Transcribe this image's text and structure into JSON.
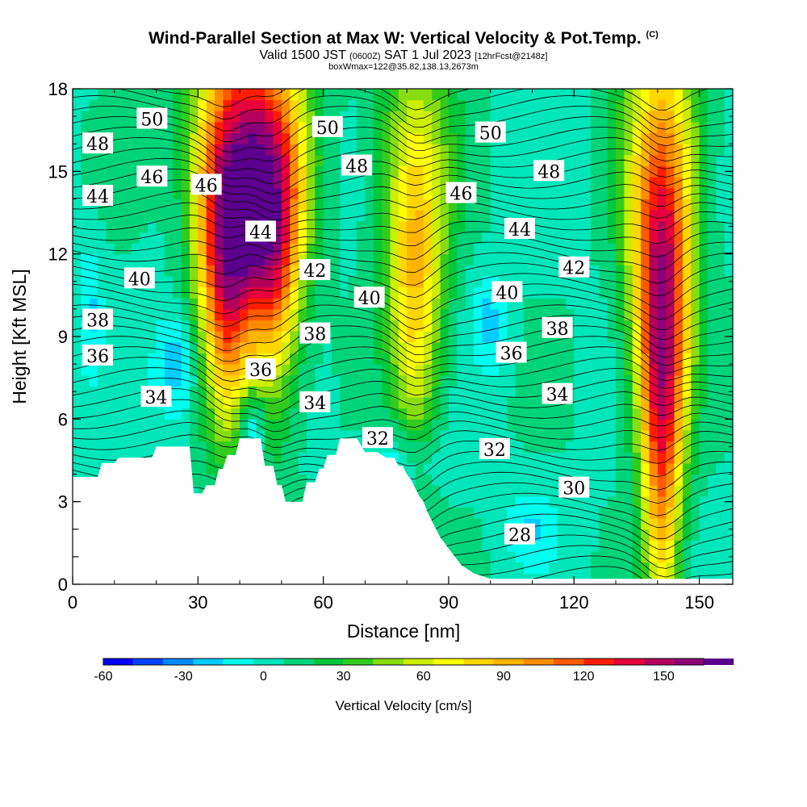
{
  "title": {
    "main": "Wind-Parallel Section at Max W: Vertical Velocity & Pot.Temp.",
    "copyright": "(C)",
    "valid_prefix": "Valid 1500 JST",
    "valid_utc": "(0600Z)",
    "valid_date": "SAT 1 Jul 2023",
    "forecast_info": "[12hrFcst@2148z]",
    "box_info": "boxWmax=122@35.82,138.13,2673m"
  },
  "colors": {
    "palette": [
      "#0000ff",
      "#0044ff",
      "#0088ff",
      "#00ccff",
      "#00ffee",
      "#00e6bb",
      "#00d47a",
      "#00c83c",
      "#33cc1e",
      "#88dd11",
      "#ccee00",
      "#ffff00",
      "#ffd700",
      "#ffb400",
      "#ff8c00",
      "#ff5a00",
      "#ff1e00",
      "#e6003c",
      "#b4005a",
      "#8c0078",
      "#5a008c"
    ],
    "contour_line": "#000000",
    "terrain": "#ffffff"
  },
  "chart_data": {
    "type": "heatmap",
    "xlabel": "Distance [nm]",
    "ylabel": "Height [Kft MSL]",
    "x_ticks": [
      0,
      30,
      60,
      90,
      120,
      150
    ],
    "y_ticks": [
      0,
      3,
      6,
      9,
      12,
      15,
      18
    ],
    "xlim": [
      0,
      158
    ],
    "ylim": [
      0,
      18
    ],
    "colorbar": {
      "title": "Vertical Velocity [cm/s]",
      "min": -60,
      "max": 165,
      "step": 11.25,
      "tick_labels": [
        -60,
        -30,
        0,
        30,
        60,
        90,
        120,
        150
      ]
    },
    "updraft_cores": [
      {
        "x_nm": 37,
        "peak_cms": 165,
        "height_range_kft": [
          8,
          18
        ]
      },
      {
        "x_nm": 48,
        "peak_cms": 150,
        "height_range_kft": [
          9,
          18
        ]
      },
      {
        "x_nm": 82,
        "peak_cms": 90,
        "height_range_kft": [
          6,
          18
        ]
      },
      {
        "x_nm": 141,
        "peak_cms": 165,
        "height_range_kft": [
          1,
          18
        ]
      }
    ],
    "terrain_profile_nm_kft": [
      [
        0,
        3.9
      ],
      [
        6,
        3.9
      ],
      [
        7,
        4.4
      ],
      [
        10,
        4.4
      ],
      [
        11,
        4.6
      ],
      [
        19,
        4.6
      ],
      [
        20,
        5.0
      ],
      [
        24,
        5.0
      ],
      [
        28,
        5.0
      ],
      [
        29,
        3.3
      ],
      [
        31,
        3.3
      ],
      [
        32,
        3.6
      ],
      [
        34,
        3.6
      ],
      [
        35,
        4.2
      ],
      [
        36,
        4.2
      ],
      [
        37,
        4.7
      ],
      [
        39,
        4.7
      ],
      [
        40,
        5.3
      ],
      [
        45,
        5.3
      ],
      [
        46,
        4.3
      ],
      [
        48,
        4.3
      ],
      [
        49,
        3.6
      ],
      [
        50,
        3.6
      ],
      [
        51,
        3.0
      ],
      [
        55,
        3.0
      ],
      [
        56,
        3.7
      ],
      [
        58,
        3.7
      ],
      [
        59,
        4.2
      ],
      [
        60,
        4.2
      ],
      [
        61,
        4.7
      ],
      [
        63,
        4.7
      ],
      [
        64,
        5.3
      ],
      [
        68,
        5.3
      ],
      [
        70,
        4.8
      ],
      [
        73,
        4.8
      ],
      [
        75,
        4.6
      ],
      [
        77,
        4.6
      ],
      [
        78,
        4.3
      ],
      [
        79,
        4.3
      ],
      [
        80,
        4.0
      ],
      [
        81,
        3.8
      ],
      [
        82,
        3.5
      ],
      [
        83,
        3.2
      ],
      [
        84,
        3.0
      ],
      [
        85,
        2.6
      ],
      [
        86,
        2.3
      ],
      [
        87,
        2.0
      ],
      [
        88,
        1.7
      ],
      [
        89,
        1.5
      ],
      [
        90,
        1.3
      ],
      [
        91,
        1.1
      ],
      [
        92,
        0.9
      ],
      [
        93,
        0.7
      ],
      [
        94,
        0.6
      ],
      [
        95,
        0.5
      ],
      [
        96,
        0.4
      ],
      [
        97,
        0.35
      ],
      [
        98,
        0.3
      ],
      [
        99,
        0.25
      ],
      [
        100,
        0.2
      ],
      [
        101,
        0.2
      ],
      [
        158,
        0.2
      ]
    ],
    "theta_contour_labels": [
      {
        "text": "50",
        "x_nm": 19,
        "y_kft": 16.9
      },
      {
        "text": "48",
        "x_nm": 6,
        "y_kft": 16.0
      },
      {
        "text": "46",
        "x_nm": 19,
        "y_kft": 14.8
      },
      {
        "text": "44",
        "x_nm": 6,
        "y_kft": 14.1
      },
      {
        "text": "46",
        "x_nm": 32,
        "y_kft": 14.5
      },
      {
        "text": "44",
        "x_nm": 45,
        "y_kft": 12.8
      },
      {
        "text": "40",
        "x_nm": 16,
        "y_kft": 11.1
      },
      {
        "text": "38",
        "x_nm": 6,
        "y_kft": 9.6
      },
      {
        "text": "36",
        "x_nm": 6,
        "y_kft": 8.3
      },
      {
        "text": "34",
        "x_nm": 20,
        "y_kft": 6.8
      },
      {
        "text": "36",
        "x_nm": 45,
        "y_kft": 7.8
      },
      {
        "text": "50",
        "x_nm": 61,
        "y_kft": 16.6
      },
      {
        "text": "48",
        "x_nm": 68,
        "y_kft": 15.2
      },
      {
        "text": "42",
        "x_nm": 58,
        "y_kft": 11.4
      },
      {
        "text": "40",
        "x_nm": 71,
        "y_kft": 10.4
      },
      {
        "text": "38",
        "x_nm": 58,
        "y_kft": 9.1
      },
      {
        "text": "34",
        "x_nm": 58,
        "y_kft": 6.6
      },
      {
        "text": "32",
        "x_nm": 73,
        "y_kft": 5.3
      },
      {
        "text": "50",
        "x_nm": 100,
        "y_kft": 16.4
      },
      {
        "text": "46",
        "x_nm": 93,
        "y_kft": 14.2
      },
      {
        "text": "48",
        "x_nm": 114,
        "y_kft": 15.0
      },
      {
        "text": "44",
        "x_nm": 107,
        "y_kft": 12.9
      },
      {
        "text": "42",
        "x_nm": 120,
        "y_kft": 11.5
      },
      {
        "text": "40",
        "x_nm": 104,
        "y_kft": 10.6
      },
      {
        "text": "38",
        "x_nm": 116,
        "y_kft": 9.3
      },
      {
        "text": "36",
        "x_nm": 105,
        "y_kft": 8.4
      },
      {
        "text": "34",
        "x_nm": 116,
        "y_kft": 6.9
      },
      {
        "text": "32",
        "x_nm": 101,
        "y_kft": 4.9
      },
      {
        "text": "30",
        "x_nm": 120,
        "y_kft": 3.5
      },
      {
        "text": "28",
        "x_nm": 107,
        "y_kft": 1.8
      }
    ]
  }
}
